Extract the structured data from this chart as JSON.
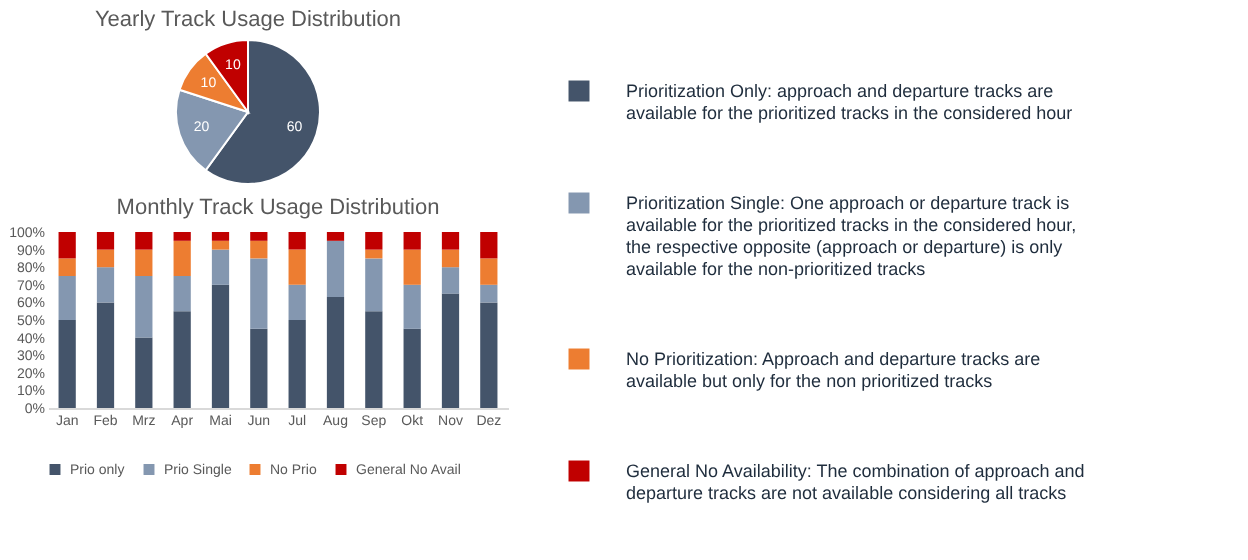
{
  "chart_data": [
    {
      "type": "pie",
      "title": "Yearly Track Usage Distribution",
      "categories": [
        null,
        null,
        null,
        null
      ],
      "values": [
        60,
        20,
        10,
        10
      ],
      "colors": [
        "#44546a",
        "#8497b0",
        "#ed7d31",
        "#c00000"
      ],
      "data_labels": true,
      "legend": false
    },
    {
      "type": "bar",
      "title": "Monthly Track Usage Distribution",
      "stacked": true,
      "categories": [
        "Jan",
        "Feb",
        "Mrz",
        "Apr",
        "Mai",
        "Jun",
        "Jul",
        "Aug",
        "Sep",
        "Okt",
        "Nov",
        "Dez"
      ],
      "series": [
        {
          "name": "Prio only",
          "color": "#44546a",
          "values": [
            50,
            60,
            40,
            55,
            70,
            45,
            50,
            63,
            55,
            45,
            65,
            60
          ]
        },
        {
          "name": "Prio Single",
          "color": "#8497b0",
          "values": [
            25,
            20,
            35,
            20,
            20,
            40,
            20,
            32,
            30,
            25,
            15,
            10
          ]
        },
        {
          "name": "No Prio",
          "color": "#ed7d31",
          "values": [
            10,
            10,
            15,
            20,
            5,
            10,
            20,
            0,
            5,
            20,
            10,
            15
          ]
        },
        {
          "name": "General No Avail",
          "color": "#c00000",
          "values": [
            15,
            10,
            10,
            5,
            5,
            5,
            10,
            5,
            10,
            10,
            10,
            15
          ]
        }
      ],
      "ylim": [
        0,
        100
      ],
      "yticks": [
        {
          "value": 0,
          "label": "0%"
        },
        {
          "value": 10,
          "label": "10%"
        },
        {
          "value": 20,
          "label": "20%"
        },
        {
          "value": 30,
          "label": "30%"
        },
        {
          "value": 40,
          "label": "40%"
        },
        {
          "value": 50,
          "label": "50%"
        },
        {
          "value": 60,
          "label": "60%"
        },
        {
          "value": 70,
          "label": "70%"
        },
        {
          "value": 80,
          "label": "80%"
        },
        {
          "value": 90,
          "label": "90%"
        },
        {
          "value": 100,
          "label": "100%"
        }
      ],
      "grid": false,
      "legend": "bottom"
    },
    {
      "type": "other",
      "series": [
        {
          "name": "Prioritization Only: approach and departure tracks are available for the prioritized tracks in the considered hour",
          "color": "#44546a"
        },
        {
          "name": "Prioritization Single: One approach or departure track is available for the prioritized tracks in the considered hour, the respective opposite (approach or departure)  is only available for the non-prioritized tracks",
          "color": "#8497b0"
        },
        {
          "name": "No Prioritization:  Approach and departure tracks are available but only for the non prioritized tracks",
          "color": "#ed7d31"
        },
        {
          "name": "General No Availability: The combination of approach and departure tracks are not available considering all tracks",
          "color": "#c00000"
        }
      ]
    }
  ]
}
